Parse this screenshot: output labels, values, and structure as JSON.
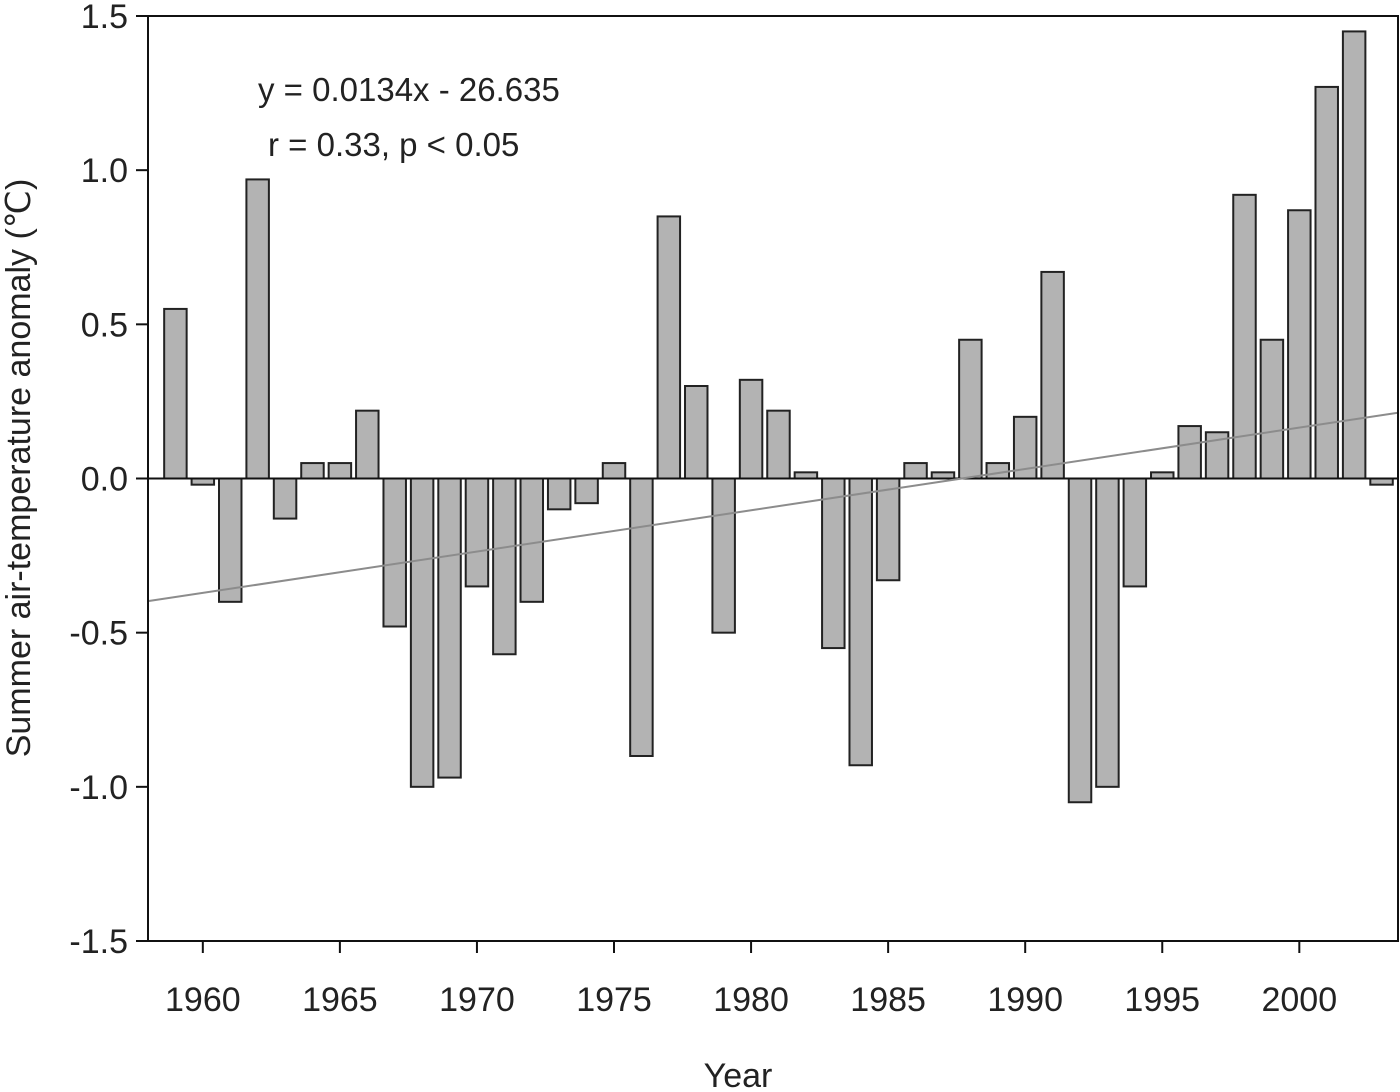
{
  "chart_data": {
    "type": "bar",
    "xlabel": "Year",
    "ylabel": "Summer air-temperature anomaly (℃)",
    "ylim": [
      -1.5,
      1.5
    ],
    "xlim": [
      1958,
      2003.6
    ],
    "yticks": [
      "1.5",
      "1.0",
      "0.5",
      "0.0",
      "-0.5",
      "-1.0",
      "-1.5"
    ],
    "ytick_values": [
      1.5,
      1.0,
      0.5,
      0.0,
      -0.5,
      -1.0,
      -1.5
    ],
    "xticks": [
      "1960",
      "1965",
      "1970",
      "1975",
      "1980",
      "1985",
      "1990",
      "1995",
      "2000"
    ],
    "xtick_values": [
      1960,
      1965,
      1970,
      1975,
      1980,
      1985,
      1990,
      1995,
      2000
    ],
    "annotations": [
      "y = 0.0134x - 26.635",
      "r = 0.33, p < 0.05"
    ],
    "trendline": {
      "slope": 0.0134,
      "intercept": -26.635
    },
    "bar_color": "#b3b3b3",
    "x": [
      1959,
      1960,
      1961,
      1962,
      1963,
      1964,
      1965,
      1966,
      1967,
      1968,
      1969,
      1970,
      1971,
      1972,
      1973,
      1974,
      1975,
      1976,
      1977,
      1978,
      1979,
      1980,
      1981,
      1982,
      1983,
      1984,
      1985,
      1986,
      1987,
      1988,
      1989,
      1990,
      1991,
      1992,
      1993,
      1994,
      1995,
      1996,
      1997,
      1998,
      1999,
      2000,
      2001,
      2002,
      2003
    ],
    "values": [
      0.55,
      -0.02,
      -0.4,
      0.97,
      -0.13,
      0.05,
      0.05,
      0.22,
      -0.48,
      -1.0,
      -0.97,
      -0.35,
      -0.57,
      -0.4,
      -0.1,
      -0.08,
      0.05,
      -0.9,
      0.85,
      0.3,
      -0.5,
      0.32,
      0.22,
      0.02,
      -0.55,
      -0.93,
      -0.33,
      0.05,
      0.02,
      0.45,
      0.05,
      0.2,
      0.67,
      -1.05,
      -1.0,
      -0.35,
      0.02,
      0.17,
      0.15,
      0.92,
      0.45,
      0.87,
      1.27,
      1.45,
      -0.02
    ]
  }
}
